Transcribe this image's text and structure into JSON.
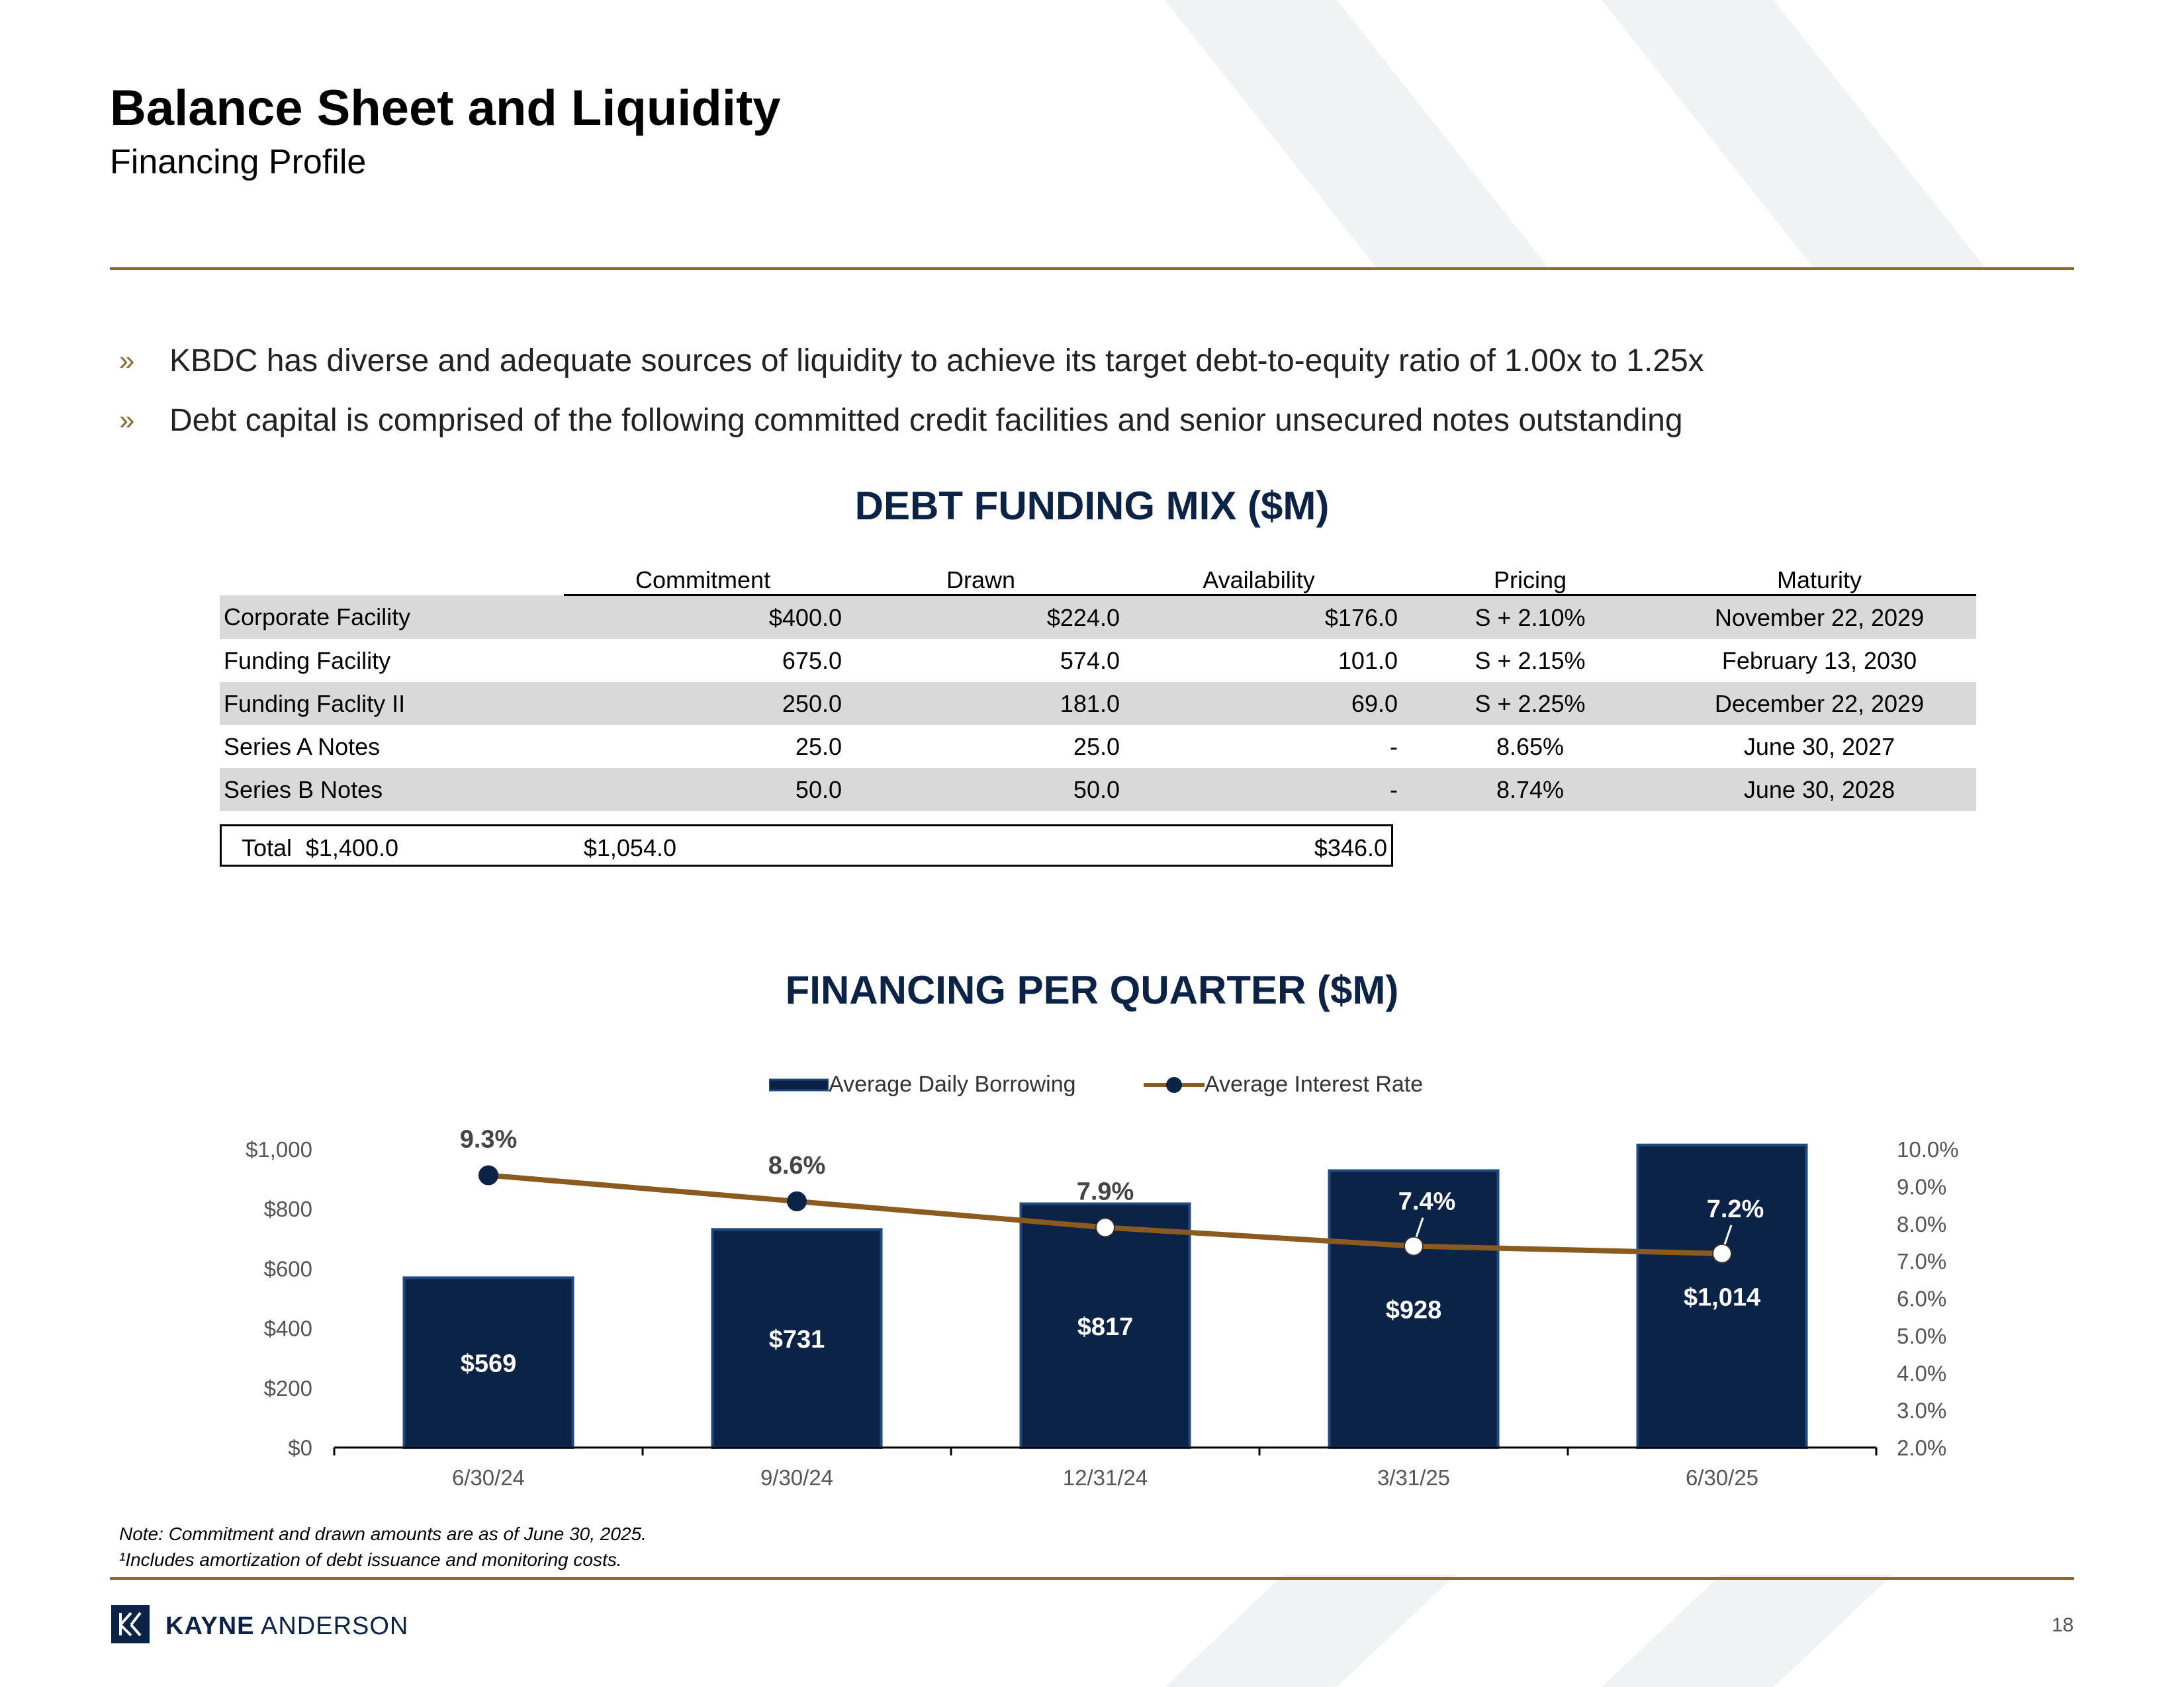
{
  "header": {
    "title": "Balance Sheet and Liquidity",
    "subtitle": "Financing Profile"
  },
  "bullets": [
    {
      "text": "KBDC has diverse and adequate sources of liquidity to achieve its target debt-to-equity ratio of 1.00x to 1.25x"
    },
    {
      "text": "Debt capital is comprised of the following committed credit facilities and senior unsecured notes outstanding"
    }
  ],
  "bullet_marker": "»",
  "debt_table": {
    "title": "DEBT FUNDING MIX ($M)",
    "columns": [
      "Commitment",
      "Drawn",
      "Availability",
      "Pricing",
      "Maturity"
    ],
    "rows": [
      {
        "name": "Corporate Facility",
        "commitment": "$400.0",
        "drawn": "$224.0",
        "availability": "$176.0",
        "pricing": "S + 2.10%",
        "maturity": "November 22, 2029"
      },
      {
        "name": "Funding Facility",
        "commitment": "675.0",
        "drawn": "574.0",
        "availability": "101.0",
        "pricing": "S + 2.15%",
        "maturity": "February 13, 2030"
      },
      {
        "name": "Funding Faclity II",
        "commitment": "250.0",
        "drawn": "181.0",
        "availability": "69.0",
        "pricing": "S + 2.25%",
        "maturity": "December 22, 2029"
      },
      {
        "name": "Series A Notes",
        "commitment": "25.0",
        "drawn": "25.0",
        "availability": "-",
        "pricing": "8.65%",
        "maturity": "June 30, 2027"
      },
      {
        "name": "Series B Notes",
        "commitment": "50.0",
        "drawn": "50.0",
        "availability": "-",
        "pricing": "8.74%",
        "maturity": "June 30, 2028"
      }
    ],
    "total": {
      "name": "Total",
      "commitment": "$1,400.0",
      "drawn": "$1,054.0",
      "availability": "$346.0"
    }
  },
  "chart_data": {
    "type": "bar",
    "title": "FINANCING PER QUARTER ($M)",
    "categories": [
      "6/30/24",
      "9/30/24",
      "12/31/24",
      "3/31/25",
      "6/30/25"
    ],
    "series": [
      {
        "name": "Average Daily Borrowing",
        "type": "bar",
        "axis": "left",
        "values": [
          569,
          731,
          817,
          928,
          1014
        ],
        "labels": [
          "$569",
          "$731",
          "$817",
          "$928",
          "$1,014"
        ],
        "color": "#0b2346"
      },
      {
        "name": "Average Interest Rate",
        "type": "line",
        "axis": "right",
        "values": [
          9.3,
          8.6,
          7.9,
          7.4,
          7.2
        ],
        "labels": [
          "9.3%",
          "8.6%",
          "7.9%",
          "7.4%",
          "7.2%"
        ],
        "color": "#8b5a1e"
      }
    ],
    "y_left": {
      "min": 0,
      "max": 1000,
      "ticks": [
        "$0",
        "$200",
        "$400",
        "$600",
        "$800",
        "$1,000"
      ]
    },
    "y_right": {
      "min": 2.0,
      "max": 10.0,
      "ticks": [
        "2.0%",
        "3.0%",
        "4.0%",
        "5.0%",
        "6.0%",
        "7.0%",
        "8.0%",
        "9.0%",
        "10.0%"
      ]
    },
    "legend": "top-center",
    "grid": false
  },
  "notes": [
    "Note:  Commitment and drawn amounts are as of June 30, 2025.",
    "¹Includes amortization of debt issuance and monitoring costs."
  ],
  "footer": {
    "brand_bold": "KAYNE",
    "brand_light": " ANDERSON",
    "page_number": "18"
  },
  "colors": {
    "navy": "#0b2346",
    "gold_rule": "#8a6a2e",
    "line_brown": "#8b5a1e",
    "row_shade": "#d9d9d9",
    "decor_gray": "#f1f2f3"
  }
}
